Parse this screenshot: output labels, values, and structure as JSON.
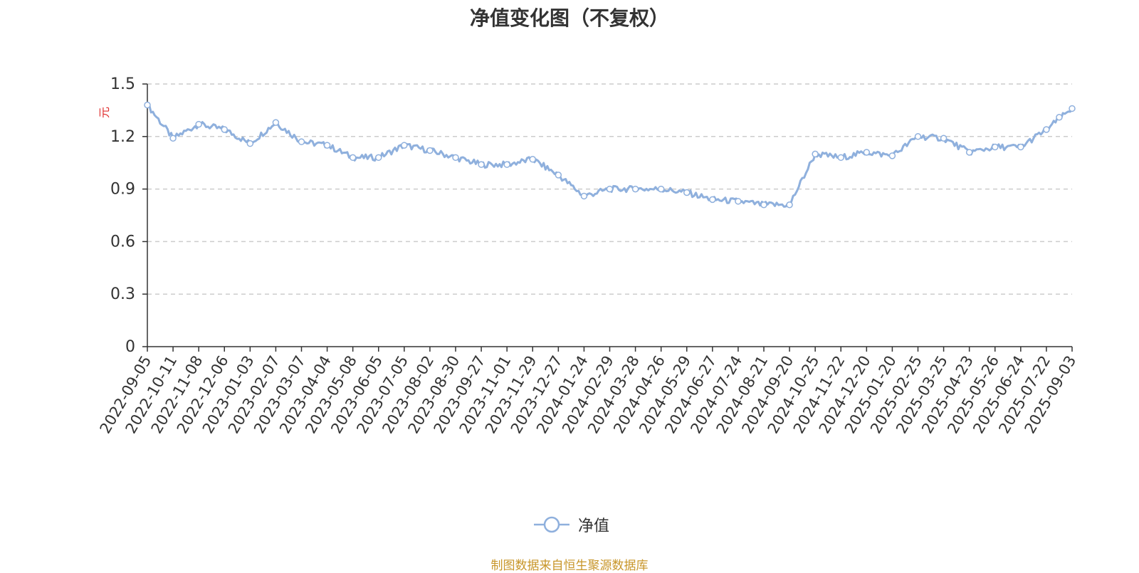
{
  "title": "净值变化图（不复权）",
  "source_note": "制图数据来自恒生聚源数据库",
  "colors": {
    "line": "#8fb0dd",
    "grid": "#cccccc",
    "axis": "#333333",
    "unit": "#e03030",
    "source": "#c8962a"
  },
  "legend": {
    "label": "净值",
    "icon": "circle-line-icon"
  },
  "chart_data": {
    "type": "line",
    "title": "净值变化图（不复权）",
    "ylabel": "元",
    "ylim": [
      0,
      1.5
    ],
    "yticks": [
      "0",
      "0.3",
      "0.6",
      "0.9",
      "1.2",
      "1.5"
    ],
    "ytick_values": [
      0,
      0.3,
      0.6,
      0.9,
      1.2,
      1.5
    ],
    "grid": true,
    "legend_position": "bottom-center",
    "categories": [
      "2022-09-05",
      "2022-10-11",
      "2022-11-08",
      "2022-12-06",
      "2023-01-03",
      "2023-02-07",
      "2023-03-07",
      "2023-04-04",
      "2023-05-08",
      "2023-06-05",
      "2023-07-05",
      "2023-08-02",
      "2023-08-30",
      "2023-09-27",
      "2023-11-01",
      "2023-11-29",
      "2023-12-27",
      "2024-01-24",
      "2024-02-29",
      "2024-03-28",
      "2024-04-26",
      "2024-05-29",
      "2024-06-27",
      "2024-07-24",
      "2024-08-21",
      "2024-09-20",
      "2024-10-25",
      "2024-11-22",
      "2024-12-20",
      "2025-01-20",
      "2025-02-25",
      "2025-03-25",
      "2025-04-23",
      "2025-05-26",
      "2025-06-24",
      "2025-07-22",
      "2025-09-03"
    ],
    "series": [
      {
        "name": "净值",
        "values": [
          1.38,
          1.19,
          1.27,
          1.24,
          1.16,
          1.28,
          1.17,
          1.15,
          1.08,
          1.08,
          1.15,
          1.12,
          1.08,
          1.04,
          1.04,
          1.07,
          0.98,
          0.86,
          0.9,
          0.9,
          0.9,
          0.88,
          0.84,
          0.83,
          0.81,
          0.81,
          1.1,
          1.08,
          1.11,
          1.09,
          1.2,
          1.19,
          1.11,
          1.14,
          1.14,
          1.24,
          1.36
        ],
        "extra_points": [
          {
            "after": 35,
            "value": 1.31
          }
        ]
      }
    ]
  }
}
